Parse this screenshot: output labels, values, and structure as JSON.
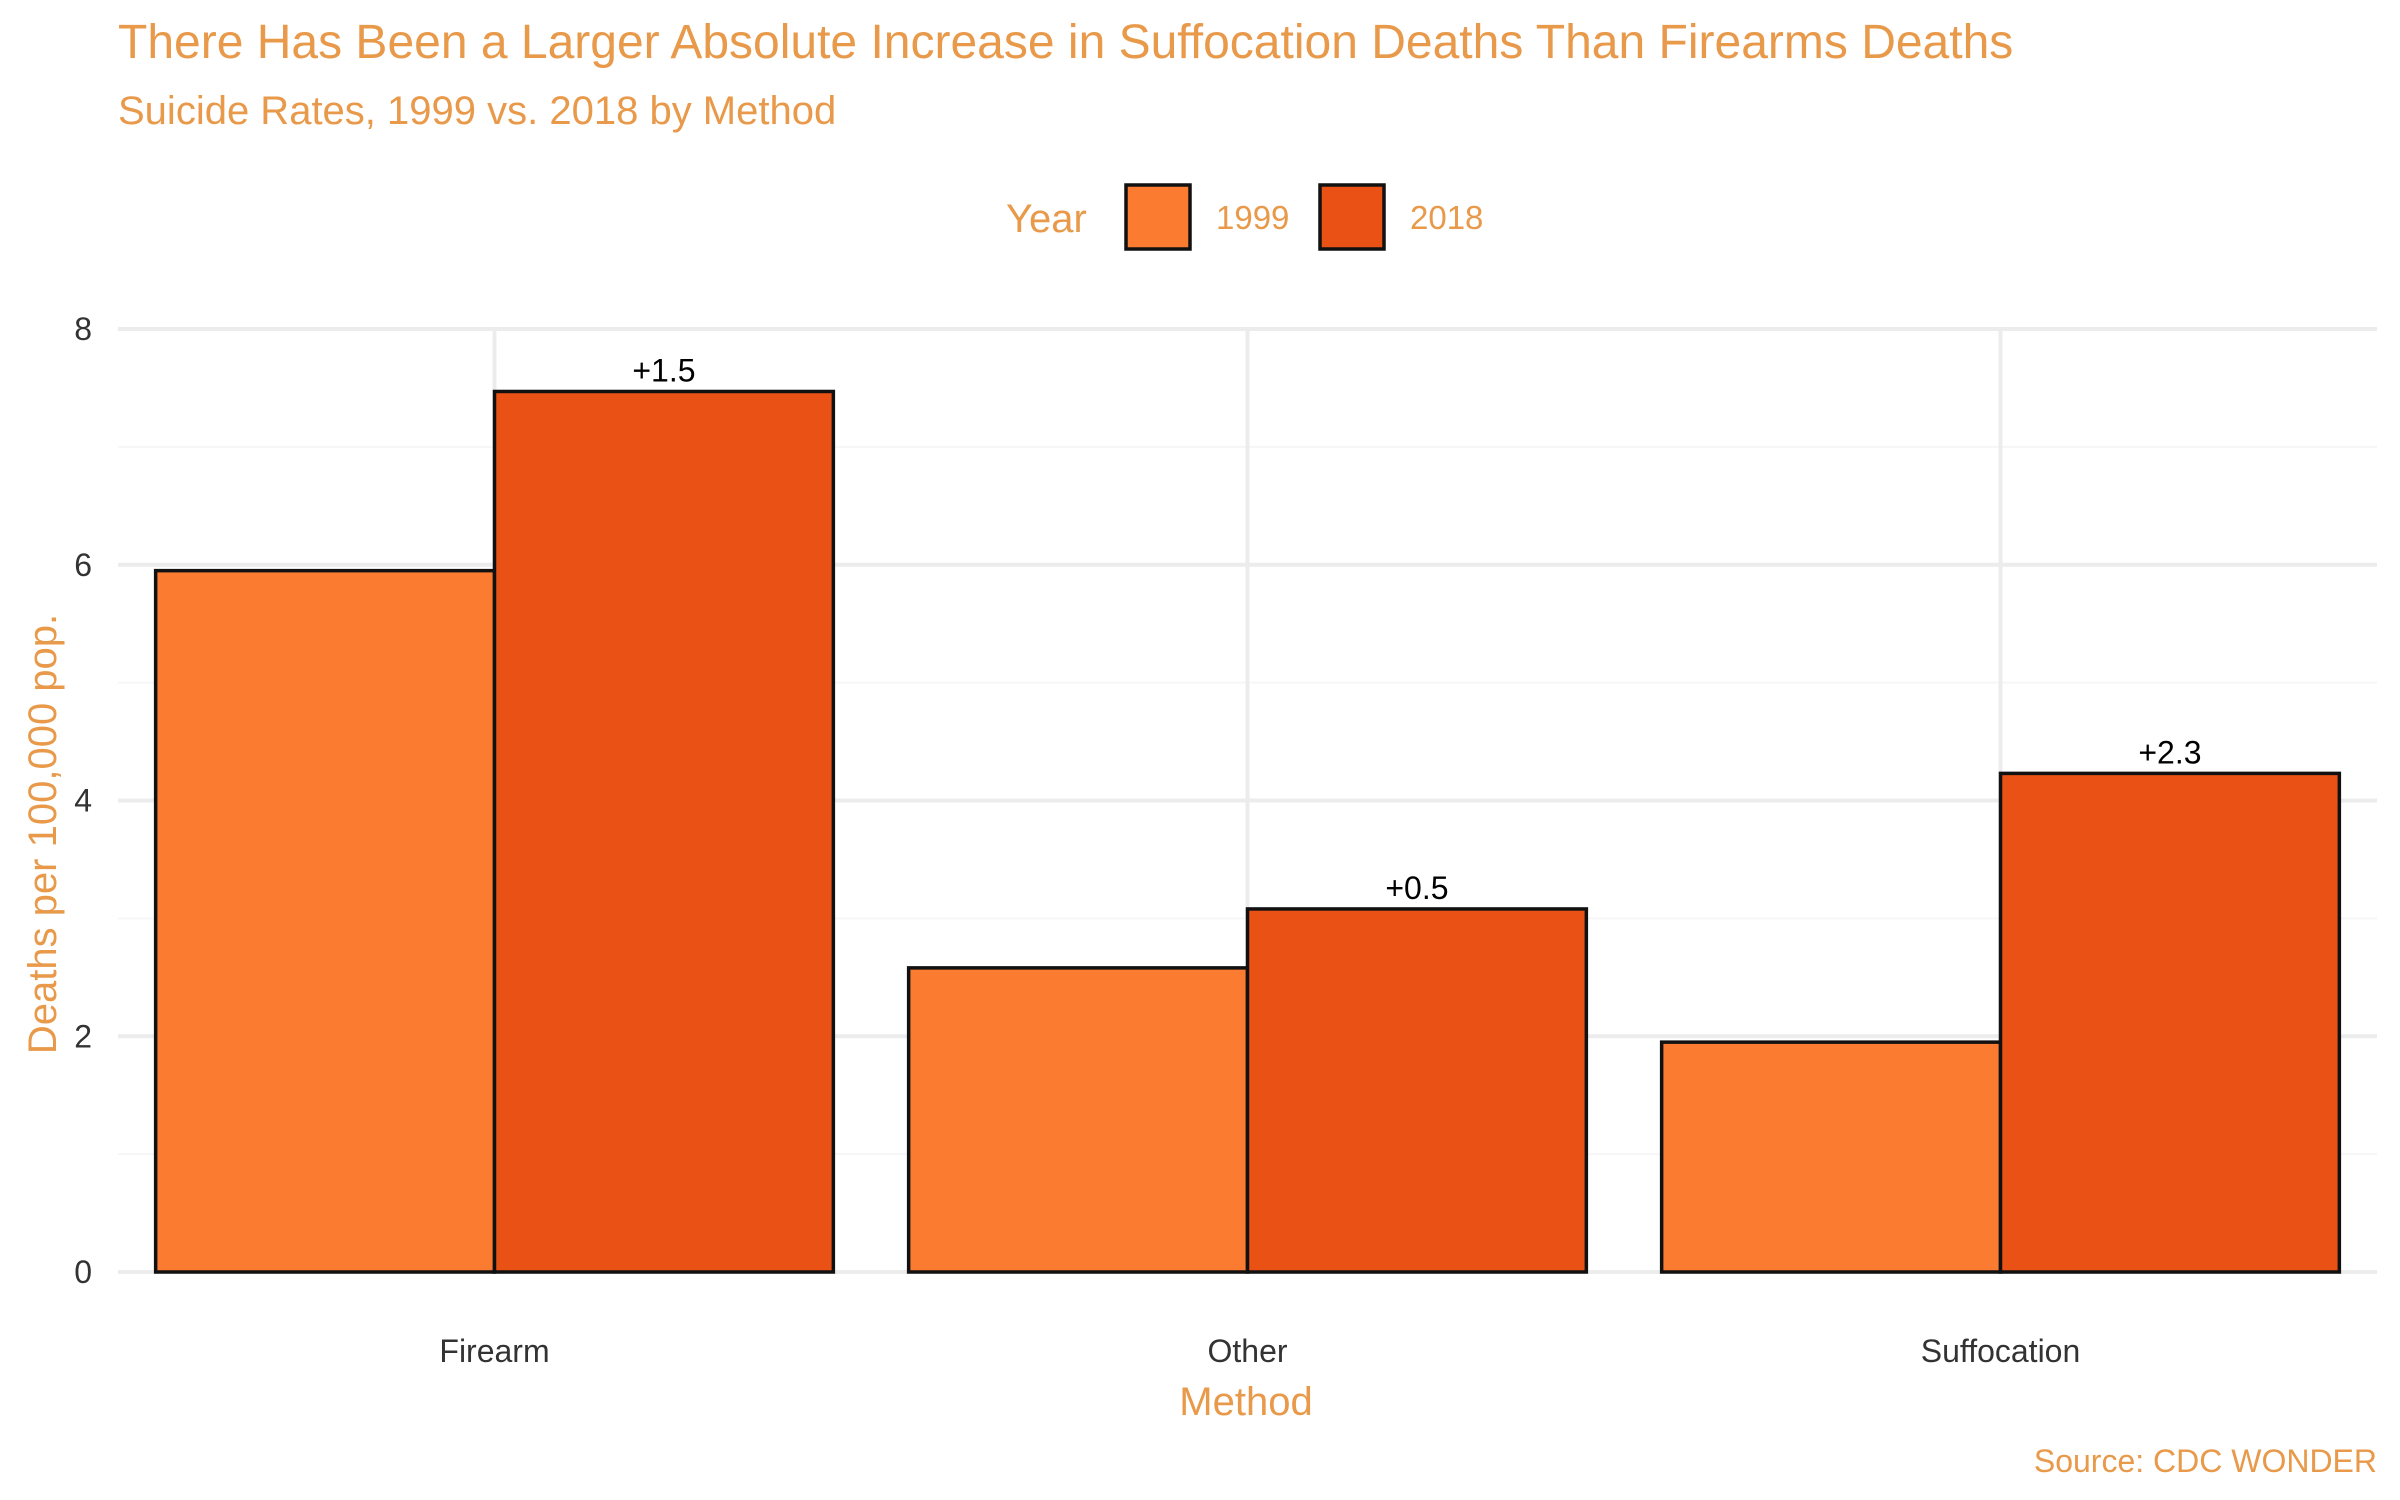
{
  "chart_data": {
    "type": "bar",
    "title": "There Has Been a Larger Absolute Increase in Suffocation Deaths Than Firearms Deaths",
    "subtitle": "Suicide Rates, 1999 vs. 2018 by Method",
    "xlabel": "Method",
    "ylabel": "Deaths per 100,000 pop.",
    "caption": "Source: CDC WONDER",
    "categories": [
      "Firearm",
      "Other",
      "Suffocation"
    ],
    "series": [
      {
        "name": "1999",
        "color": "#FB7B30",
        "values": [
          5.95,
          2.58,
          1.95
        ]
      },
      {
        "name": "2018",
        "color": "#E95214",
        "values": [
          7.47,
          3.08,
          4.23
        ]
      }
    ],
    "annotations": [
      "+1.5",
      "+0.5",
      "+2.3"
    ],
    "legend": {
      "title": "Year",
      "position": "top"
    },
    "ylim": [
      0,
      8
    ],
    "yticks": [
      0,
      2,
      4,
      6,
      8
    ],
    "grid": true
  }
}
